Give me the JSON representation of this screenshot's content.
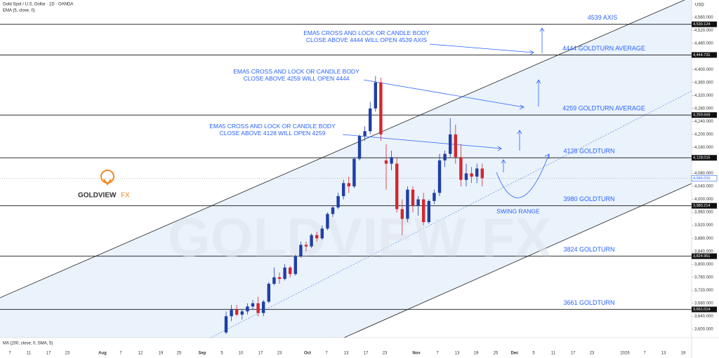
{
  "chart_data": {
    "type": "candlestick",
    "title": "Gold Spot / U.S. Dollar · 1D · OANDA",
    "subtitle": "EMA (5, close, 0)",
    "footer_indicator": "MA (200, close, 0, SMA, 5)",
    "currency": "USD",
    "up_color": "#1f3fa6",
    "down_color": "#d3282f",
    "ylim": [
      3574,
      4614
    ],
    "yticks": [
      {
        "value": 3600,
        "label": "3,600.000"
      },
      {
        "value": 3640,
        "label": "3,640.000"
      },
      {
        "value": 3680,
        "label": "3,680.000"
      },
      {
        "value": 3720,
        "label": "3,720.000"
      },
      {
        "value": 3760,
        "label": "3,760.000"
      },
      {
        "value": 3800,
        "label": "3,800.000"
      },
      {
        "value": 3840,
        "label": "3,840.000"
      },
      {
        "value": 3880,
        "label": "3,880.000"
      },
      {
        "value": 3920,
        "label": "3,920.000"
      },
      {
        "value": 3960,
        "label": "3,960.000"
      },
      {
        "value": 4000,
        "label": "4,000.000"
      },
      {
        "value": 4040,
        "label": "4,040.000"
      },
      {
        "value": 4080,
        "label": "4,080.000"
      },
      {
        "value": 4160,
        "label": "4,160.000"
      },
      {
        "value": 4200,
        "label": "4,200.000"
      },
      {
        "value": 4240,
        "label": "4,240.000"
      },
      {
        "value": 4280,
        "label": "4,280.000"
      },
      {
        "value": 4320,
        "label": "4,320.000"
      },
      {
        "value": 4360,
        "label": "4,360.000"
      },
      {
        "value": 4400,
        "label": "4,400.000"
      },
      {
        "value": 4480,
        "label": "4,480.000"
      },
      {
        "value": 4520,
        "label": "4,520.000"
      },
      {
        "value": 4560,
        "label": "4,560.000"
      }
    ],
    "x_labels": [
      "7",
      "11",
      "17",
      "23",
      "Aug",
      "7",
      "12",
      "19",
      "25",
      "Sep",
      "5",
      "10",
      "17",
      "23",
      "Oct",
      "7",
      "13",
      "17",
      "23",
      "Nov",
      "7",
      "13",
      "19",
      "25",
      "Dec",
      "5",
      "11",
      "17",
      "23",
      "2026",
      "7",
      "13",
      "19"
    ],
    "levels": [
      {
        "value": 4539.124,
        "label": "4,539.124",
        "name": "4539 AXIS"
      },
      {
        "value": 4444.731,
        "label": "4,444.731",
        "name": "4444 GOLDTURN AVERAGE"
      },
      {
        "value": 4259.669,
        "label": "4,259.669",
        "name": "4259 GOLDTURN AVERAGE"
      },
      {
        "value": 4128.015,
        "label": "4,128.015",
        "name": "4128 GOLDTURN"
      },
      {
        "value": 3980.214,
        "label": "3,980.214",
        "name": "3980 GOLDTURN"
      },
      {
        "value": 3824.961,
        "label": "3,824.961",
        "name": "3824 GOLDTURN"
      },
      {
        "value": 3661.014,
        "label": "3,661.014",
        "name": "3661 GOLDTURN"
      }
    ],
    "last_price": {
      "value": 4065.01,
      "label": "4,065.010"
    },
    "annotations": [
      "EMA5 CROSS AND LOCK OR CANDLE BODY CLOSE ABOVE 4444 WILL OPEN 4539 AXIS",
      "EMA5 CROSS AND LOCK OR CANDLE BODY CLOSE ABOVE 4259 WILL OPEN 4444",
      "EMA5 CROSS AND LOCK OR CANDLE BODY CLOSE ABOVE 4128 WILL OPEN 4259",
      "SWING RANGE"
    ],
    "logo": "GOLDVIEW",
    "logo_suffix": "FX",
    "watermark": "GOLDVIEW FX",
    "open": [
      3590,
      3640,
      3660,
      3645,
      3655,
      3670,
      3680,
      3650,
      3685,
      3740,
      3760,
      3755,
      3790,
      3770,
      3825,
      3860,
      3855,
      3890,
      3880,
      3910,
      3955,
      3975,
      4010,
      4050,
      4040,
      4125,
      4195,
      4210,
      4280,
      4360,
      4120,
      4110,
      4110,
      3970,
      3940,
      4030,
      3980,
      4000,
      3930,
      3995,
      4020,
      4120,
      4140,
      4200,
      4130,
      4060,
      4080,
      4070,
      4095
    ],
    "high": [
      3655,
      3675,
      3675,
      3660,
      3680,
      3690,
      3700,
      3690,
      3745,
      3790,
      3775,
      3800,
      3795,
      3830,
      3870,
      3870,
      3895,
      3900,
      3920,
      3960,
      3980,
      4020,
      4060,
      4070,
      4130,
      4200,
      4225,
      4300,
      4380,
      4375,
      4170,
      4150,
      4130,
      4000,
      4040,
      4040,
      4010,
      4020,
      4000,
      4030,
      4140,
      4150,
      4250,
      4230,
      4170,
      4110,
      4100,
      4110,
      4110
    ],
    "low": [
      3585,
      3625,
      3640,
      3630,
      3645,
      3660,
      3640,
      3640,
      3680,
      3735,
      3740,
      3750,
      3760,
      3765,
      3820,
      3840,
      3850,
      3870,
      3875,
      3905,
      3945,
      3970,
      4000,
      4020,
      4035,
      4120,
      4180,
      4200,
      4270,
      4180,
      4030,
      4090,
      3960,
      3890,
      3930,
      3960,
      3950,
      3920,
      3925,
      3985,
      4010,
      4100,
      4130,
      4110,
      4040,
      4040,
      4050,
      4050,
      4040
    ],
    "close": [
      3640,
      3660,
      3645,
      3655,
      3670,
      3680,
      3650,
      3685,
      3740,
      3760,
      3755,
      3790,
      3770,
      3825,
      3860,
      3855,
      3890,
      3880,
      3910,
      3955,
      3975,
      4010,
      4050,
      4040,
      4125,
      4195,
      4210,
      4280,
      4360,
      4200,
      4110,
      4130,
      3970,
      3940,
      4030,
      3980,
      4000,
      3930,
      3995,
      4020,
      4120,
      4140,
      4200,
      4130,
      4060,
      4080,
      4070,
      4095,
      4065
    ]
  }
}
